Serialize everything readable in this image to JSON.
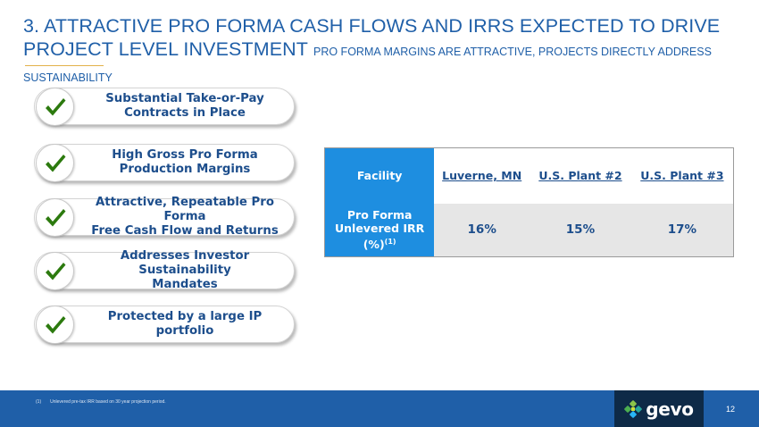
{
  "slide": {
    "title_main": "3. ATTRACTIVE PRO FORMA CASH FLOWS AND IRRS EXPECTED TO DRIVE PROJECT LEVEL INVESTMENT",
    "title_sub": "PRO FORMA MARGINS ARE ATTRACTIVE, PROJECTS DIRECTLY ADDRESS SUSTAINABILITY",
    "page_number": "12"
  },
  "colors": {
    "title_blue": "#1f5fa8",
    "check_green": "#2c7a0e",
    "table_header_blue": "#1e8ee0",
    "footer_blue": "#1f5fa8",
    "logo_navy": "#0e2a47"
  },
  "points": [
    {
      "icon": "checkmark-icon",
      "line1": "Substantial Take-or-Pay",
      "line2": "Contracts in Place"
    },
    {
      "icon": "checkmark-icon",
      "line1": "High Gross Pro Forma",
      "line2": "Production Margins"
    },
    {
      "icon": "checkmark-icon",
      "line1": "Attractive, Repeatable Pro Forma",
      "line2": "Free Cash Flow and Returns"
    },
    {
      "icon": "checkmark-icon",
      "line1": "Addresses Investor Sustainability",
      "line2": "Mandates"
    },
    {
      "icon": "checkmark-icon",
      "line1": "Protected by a large IP portfolio",
      "line2": ""
    }
  ],
  "table": {
    "header_label": "Facility",
    "columns": [
      "Luverne, MN",
      "U.S. Plant #2",
      "U.S. Plant #3"
    ],
    "row_label_line1": "Pro Forma",
    "row_label_line2": "Unlevered IRR",
    "row_label_line3": "(%)",
    "row_label_sup": "(1)",
    "values": [
      "16%",
      "15%",
      "17%"
    ]
  },
  "footer": {
    "footnote_number": "(1)",
    "footnote_text": "Unlevered pre-tax IRR based on 30 year projection period.",
    "logo_text": "gevo",
    "logo_icon": "gevo-leaf-icon"
  }
}
